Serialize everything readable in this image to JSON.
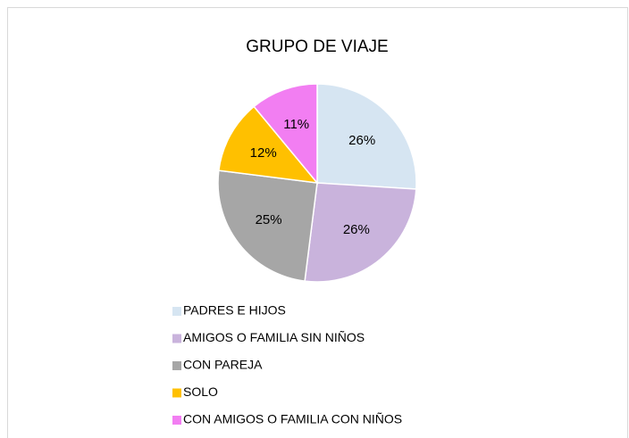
{
  "chart_data": {
    "type": "pie",
    "title": "GRUPO DE VIAJE",
    "categories": [
      "PADRES E HIJOS",
      "AMIGOS O FAMILIA SIN NIÑOS",
      "CON PAREJA",
      "SOLO",
      "CON AMIGOS O FAMILIA CON NIÑOS"
    ],
    "values": [
      26,
      26,
      25,
      12,
      11
    ],
    "value_labels": [
      "26%",
      "26%",
      "25%",
      "12%",
      "11%"
    ],
    "colors": [
      "#d6e5f2",
      "#c9b3dc",
      "#a6a6a6",
      "#ffc000",
      "#f27ef2"
    ],
    "legend": "bottom"
  }
}
